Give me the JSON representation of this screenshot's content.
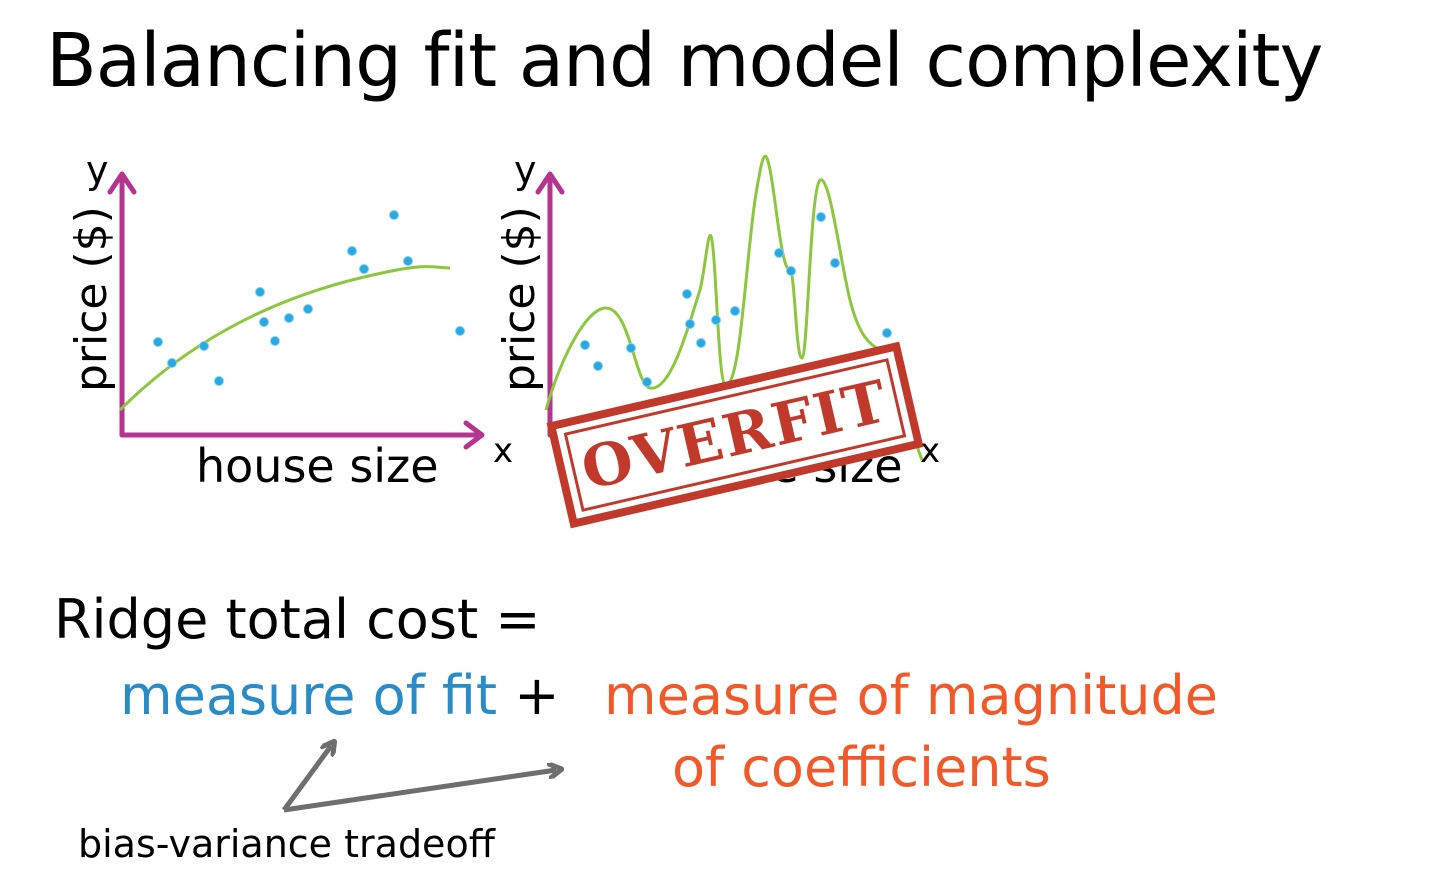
{
  "title": "Balancing fit and model complexity",
  "plot_left": {
    "y_symbol": "y",
    "y_label": "price ($)",
    "x_symbol": "x",
    "x_label": "house size"
  },
  "plot_right": {
    "y_symbol": "y",
    "y_label": "price ($)",
    "x_symbol": "x",
    "x_label": "house size",
    "stamp_text": "OVERFIT"
  },
  "equation": {
    "lhs": "Ridge total cost =",
    "fit_term": "measure of fit",
    "plus": "+",
    "magnitude_line1": "measure of magnitude",
    "magnitude_line2": "of coefficients",
    "annotation": "bias-variance tradeoff"
  },
  "colors": {
    "axis": "#b5348e",
    "curve": "#8dc63f",
    "points": "#29a9e1",
    "fit": "#2a8cc7",
    "magnitude": "#f05a2b",
    "stamp": "#c0392b",
    "arrow": "#6e6e6e"
  }
}
